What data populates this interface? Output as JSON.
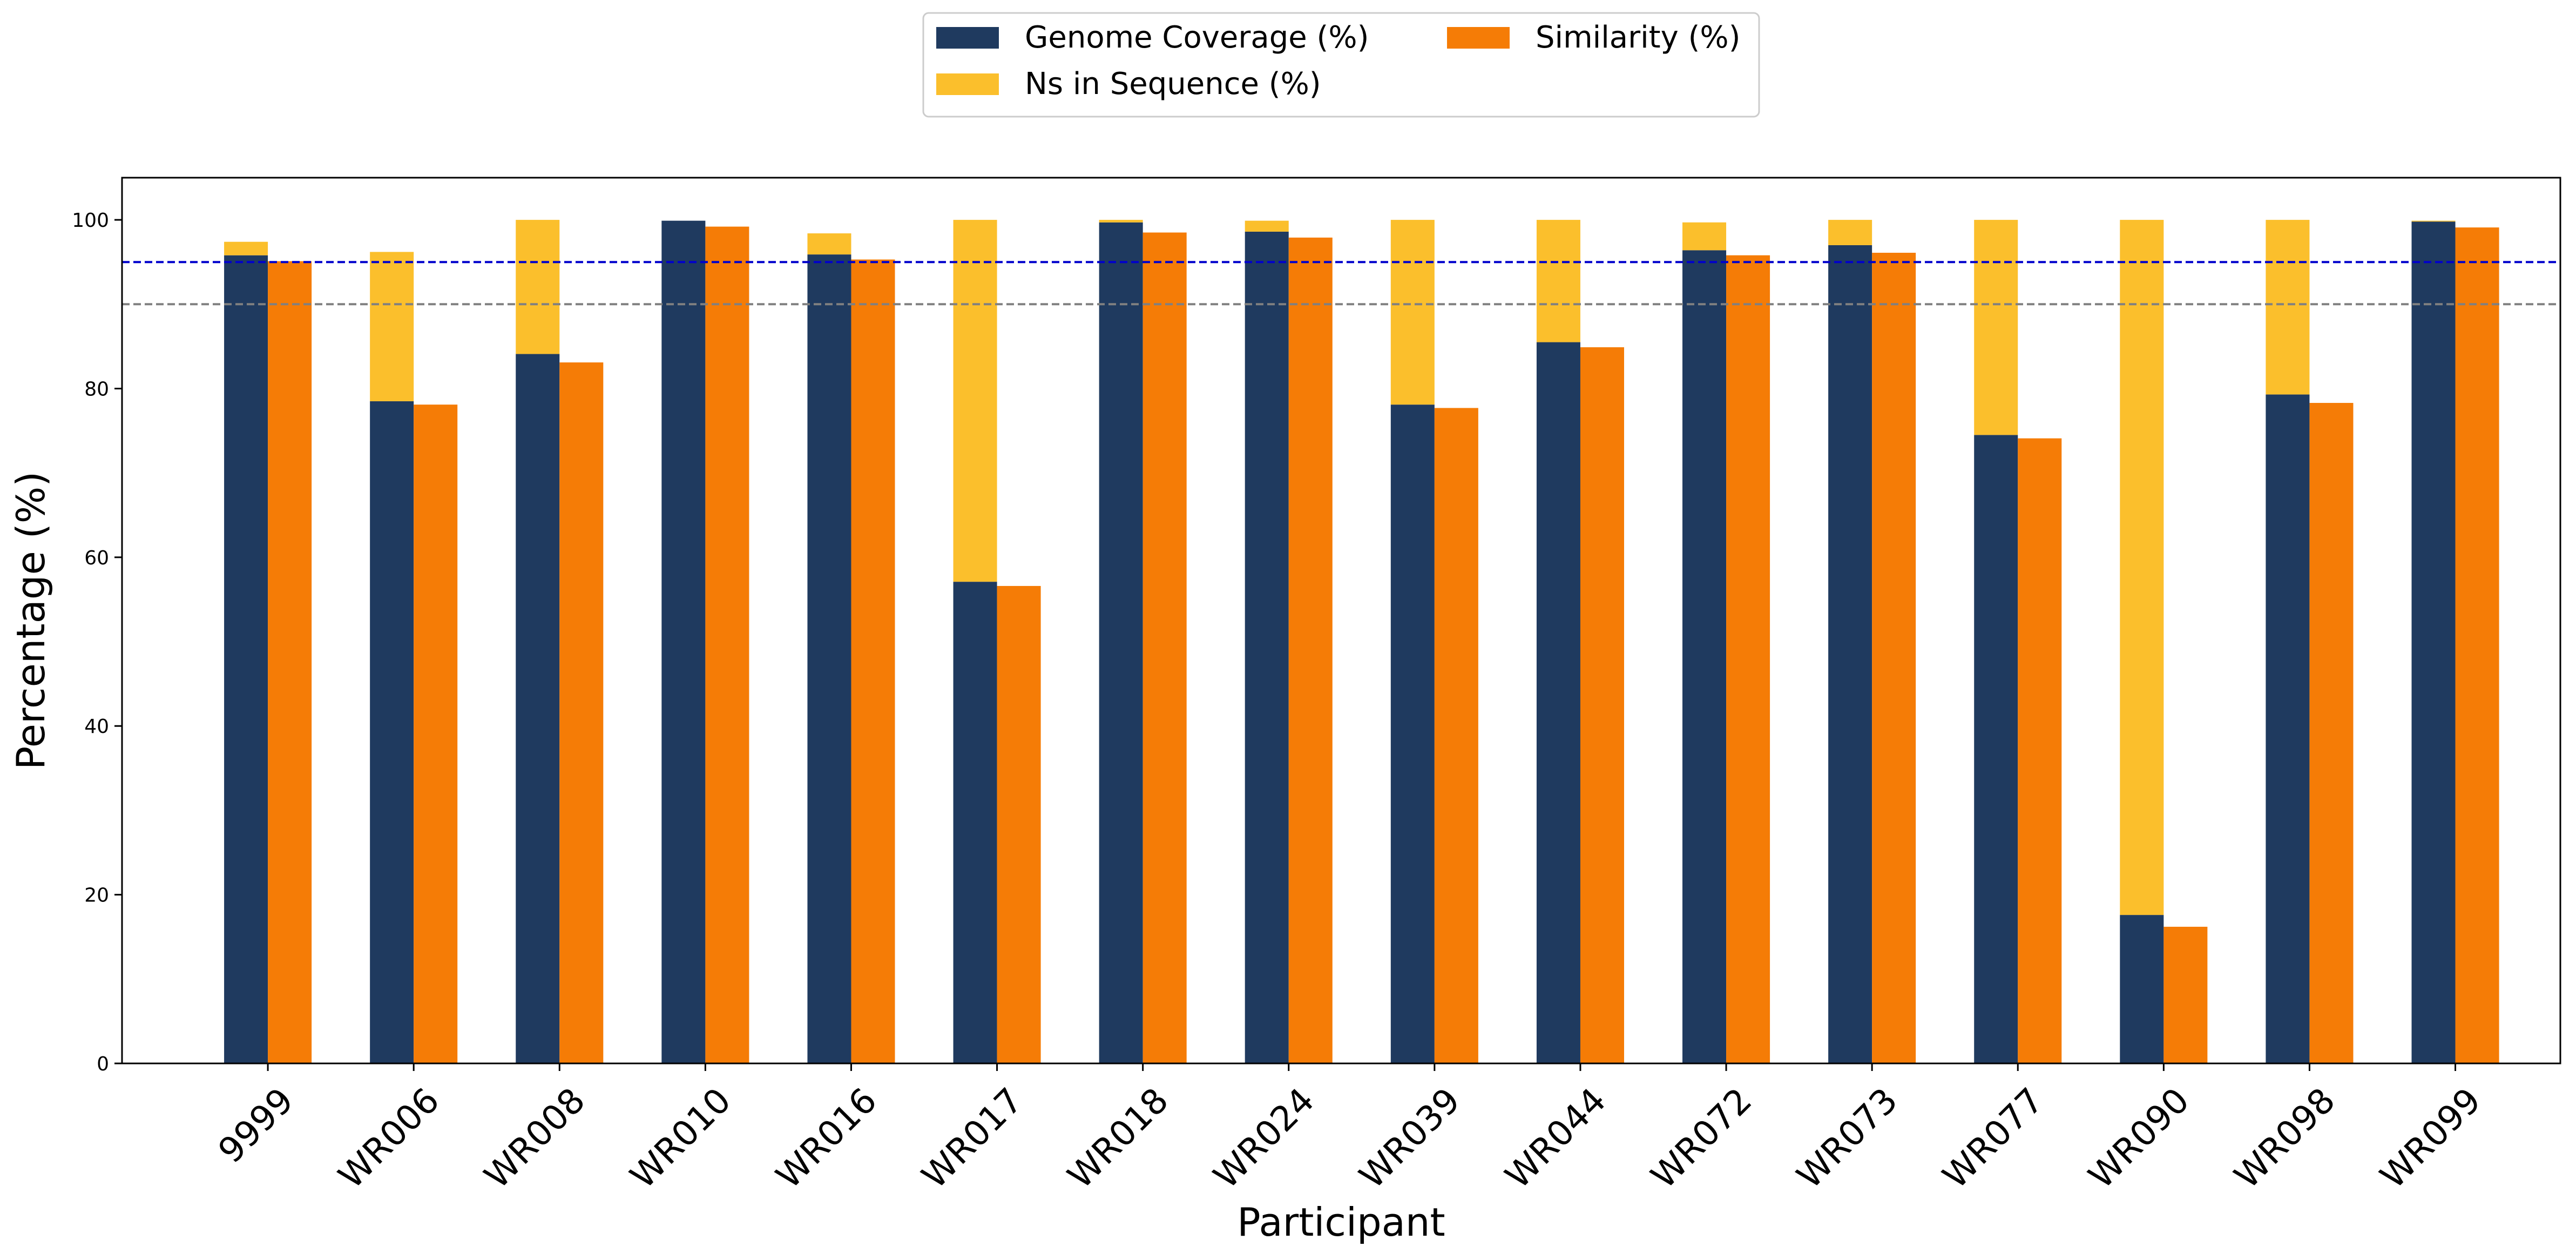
{
  "chart_data": {
    "type": "bar",
    "categories": [
      "9999",
      "WR006",
      "WR008",
      "WR010",
      "WR016",
      "WR017",
      "WR018",
      "WR024",
      "WR039",
      "WR044",
      "WR072",
      "WR073",
      "WR077",
      "WR090",
      "WR098",
      "WR099"
    ],
    "series": [
      {
        "name": "Genome Coverage (%)",
        "color": "#1f3a5f",
        "stack": "left",
        "values": [
          95.8,
          78.5,
          84.1,
          99.9,
          95.9,
          57.1,
          99.7,
          98.6,
          78.1,
          85.5,
          96.4,
          97.0,
          74.5,
          17.6,
          79.3,
          99.8
        ]
      },
      {
        "name": "Ns in Sequence (%)",
        "color": "#fbbf2c",
        "stack": "left",
        "values": [
          1.6,
          17.7,
          15.9,
          0.0,
          2.5,
          42.9,
          0.3,
          1.3,
          21.9,
          14.5,
          3.3,
          3.0,
          25.5,
          82.4,
          20.7,
          0.1
        ]
      },
      {
        "name": "Similarity (%)",
        "color": "#f57c06",
        "stack": "right",
        "values": [
          95.1,
          78.1,
          83.1,
          99.2,
          95.3,
          56.6,
          98.5,
          97.9,
          77.7,
          84.9,
          95.8,
          96.1,
          74.1,
          16.2,
          78.3,
          99.1
        ]
      }
    ],
    "reference_lines": [
      {
        "value": 95,
        "color": "#0000cc",
        "style": "dashed"
      },
      {
        "value": 90,
        "color": "#808080",
        "style": "dashed"
      }
    ],
    "xlabel": "Participant",
    "ylabel": "Percentage (%)",
    "ylim": [
      0,
      105
    ],
    "yticks": [
      0,
      20,
      40,
      60,
      80,
      100
    ],
    "grid": false,
    "legend_position": "top-center"
  }
}
